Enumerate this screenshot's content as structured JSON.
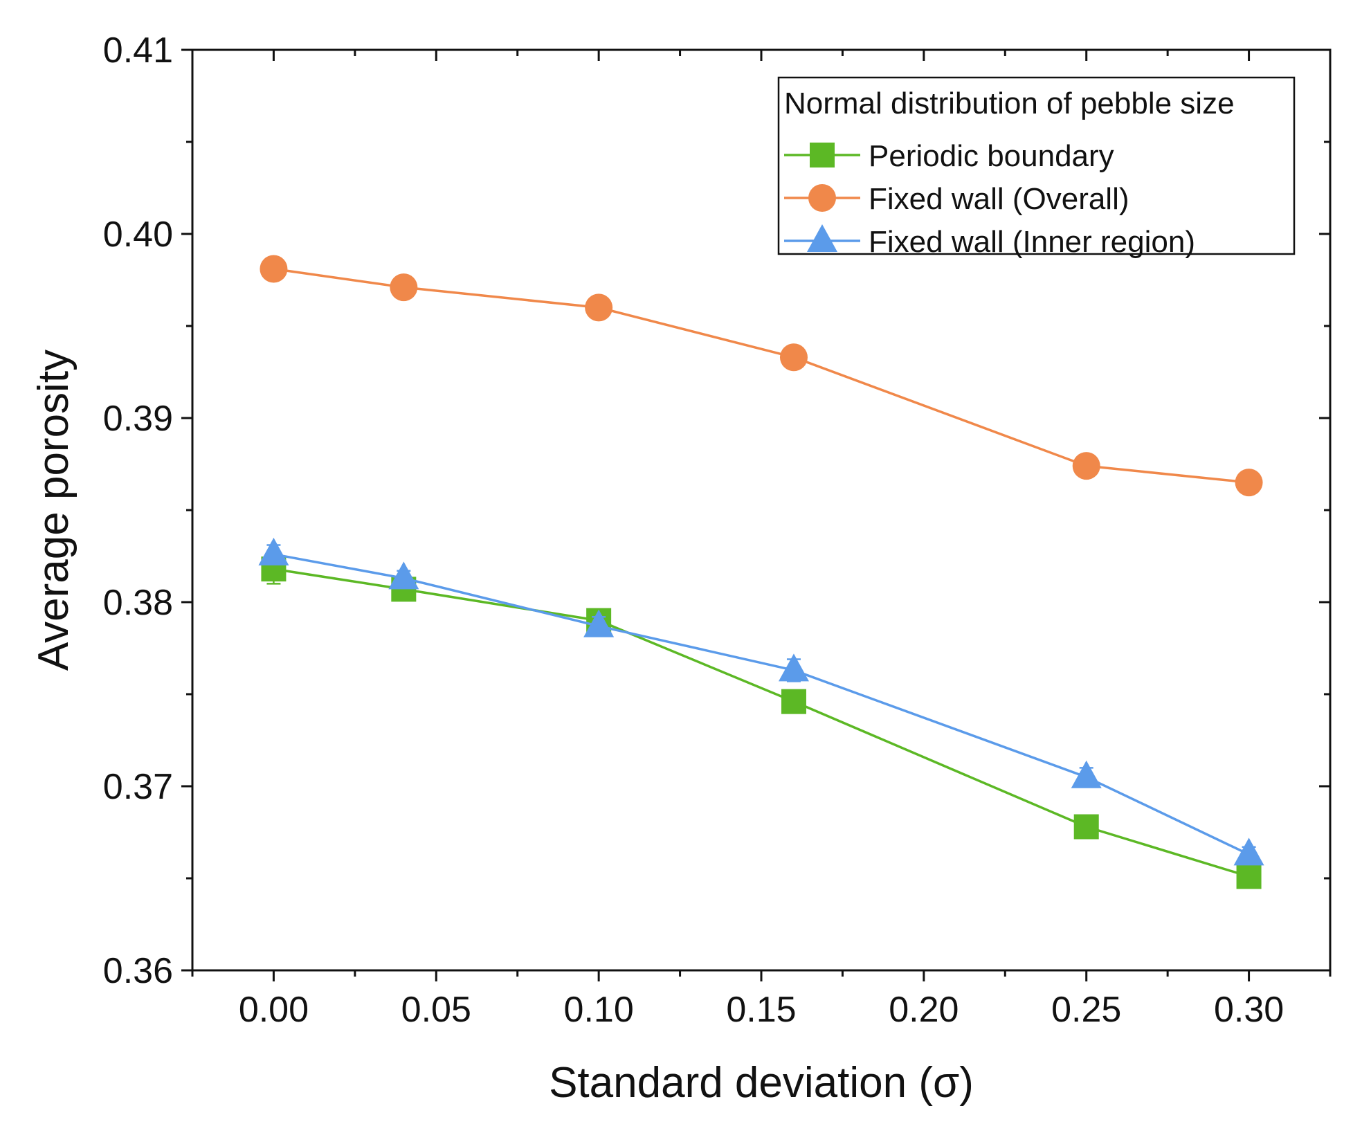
{
  "chart_data": {
    "type": "line",
    "title": "",
    "xlabel": "Standard deviation (σ)",
    "ylabel": "Average porosity",
    "xlim": [
      -0.025,
      0.325
    ],
    "ylim": [
      0.36,
      0.41
    ],
    "xticks": [
      0.0,
      0.05,
      0.1,
      0.15,
      0.2,
      0.25,
      0.3
    ],
    "xtick_labels": [
      "0.00",
      "0.05",
      "0.10",
      "0.15",
      "0.20",
      "0.25",
      "0.30"
    ],
    "yticks": [
      0.36,
      0.37,
      0.38,
      0.39,
      0.4,
      0.41
    ],
    "ytick_labels": [
      "0.36",
      "0.37",
      "0.38",
      "0.39",
      "0.40",
      "0.41"
    ],
    "grid": false,
    "legend": {
      "title": "Normal distribution of pebble size",
      "position": "top-right"
    },
    "series": [
      {
        "name": "Periodic boundary",
        "color": "#5cb825",
        "marker": "square",
        "x": [
          0.0,
          0.04,
          0.1,
          0.16,
          0.25,
          0.3
        ],
        "y": [
          0.3818,
          0.3807,
          0.379,
          0.3746,
          0.3678,
          0.3651
        ],
        "err": [
          0.0008,
          0.0004,
          0.0004,
          0.0005,
          0.0005,
          0.0004
        ]
      },
      {
        "name": "Fixed wall (Overall)",
        "color": "#f0884a",
        "marker": "circle",
        "x": [
          0.0,
          0.04,
          0.1,
          0.16,
          0.25,
          0.3
        ],
        "y": [
          0.3981,
          0.3971,
          0.396,
          0.3933,
          0.3874,
          0.3865
        ],
        "err": [
          0.0004,
          0.0004,
          0.0004,
          0.0004,
          0.0004,
          0.0004
        ]
      },
      {
        "name": "Fixed wall (Inner region)",
        "color": "#5b9bea",
        "marker": "triangle",
        "x": [
          0.0,
          0.04,
          0.1,
          0.16,
          0.25,
          0.3
        ],
        "y": [
          0.3826,
          0.3813,
          0.3787,
          0.3763,
          0.3705,
          0.3663
        ],
        "err": [
          0.0005,
          0.0004,
          0.0005,
          0.0006,
          0.0005,
          0.0004
        ]
      }
    ]
  }
}
